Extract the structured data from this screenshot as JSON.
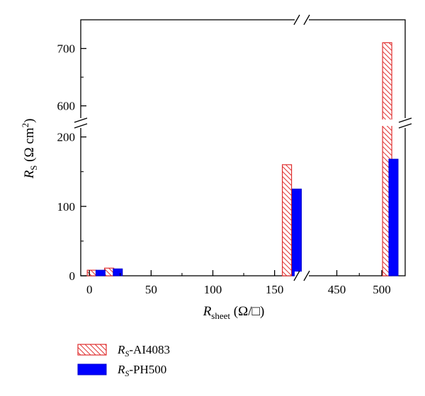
{
  "chart_data": {
    "type": "bar",
    "x_axis": {
      "title_symbol": "R",
      "title_subscript": "sheet",
      "title_unit": " (Ω/□)",
      "ticks": [
        "0",
        "50",
        "100",
        "150",
        "450",
        "500"
      ],
      "segments": [
        [
          -7,
          172
        ],
        [
          411,
          526
        ]
      ],
      "break_marker": true
    },
    "y_axis": {
      "title_symbol": "R",
      "title_subscript": "S",
      "title_unit": " (Ω cm",
      "title_superscript": "2",
      "title_close": ")",
      "ticks": [
        "0",
        "100",
        "200",
        "600",
        "700"
      ],
      "segments": [
        [
          0,
          220
        ],
        [
          570,
          750
        ]
      ],
      "break_marker": true
    },
    "series": [
      {
        "name_symbol": "R",
        "name_subscript": "S",
        "name_suffix": "-AI4083",
        "color": "#e03030",
        "fill": "hatched",
        "x": [
          2,
          16,
          160,
          506
        ],
        "values": [
          8,
          11,
          160,
          710
        ]
      },
      {
        "name_symbol": "R",
        "name_subscript": "S",
        "name_suffix": "-PH500",
        "color": "#0000ff",
        "fill": "solid",
        "x": [
          9,
          23,
          168,
          513
        ],
        "values": [
          8,
          10,
          125,
          168
        ]
      }
    ],
    "legend_position": "bottom-left, below plot",
    "grid": false
  }
}
